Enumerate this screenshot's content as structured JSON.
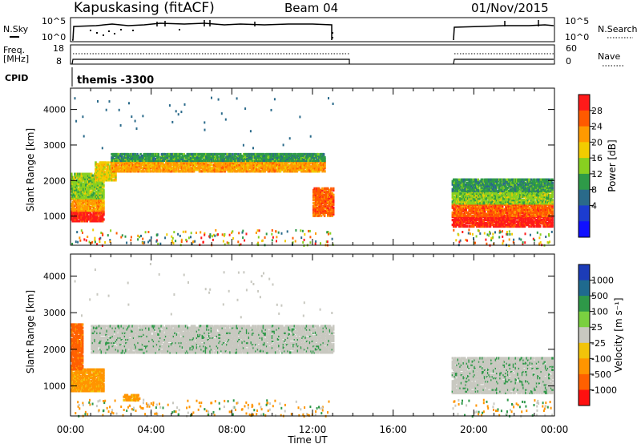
{
  "header": {
    "station": "Kapuskasing (fitACF)",
    "beam": "Beam 04",
    "date": "01/Nov/2015"
  },
  "scan_panel": {
    "left_label": "N.Sky",
    "left_ticks": [
      "10^5",
      "10^0"
    ],
    "right_label": "N.Search",
    "right_ticks": [
      "10^5",
      "10^0"
    ]
  },
  "freq_panel": {
    "left_label_1": "Freq.",
    "left_label_2": "[MHz]",
    "left_ticks": [
      "18",
      "8"
    ],
    "right_label": "Nave",
    "right_ticks": [
      "60",
      "0"
    ]
  },
  "cpid_panel": {
    "label": "CPID",
    "program": "themis -3300"
  },
  "colorbars": {
    "power": {
      "label": "Power [dB]",
      "ticks": [
        "28",
        "24",
        "20",
        "16",
        "12",
        "8",
        "4"
      ],
      "colors": [
        "#ff1a1a",
        "#ff5a00",
        "#ff9a00",
        "#f2cc00",
        "#88d020",
        "#2e9a48",
        "#2a6a8a",
        "#1c3cd0",
        "#1010ff"
      ]
    },
    "velocity": {
      "label": "Velocity [m s⁻¹]",
      "ticks": [
        "1000",
        "500",
        "100",
        "25",
        "-25",
        "-100",
        "-500",
        "-1000"
      ],
      "colors": [
        "#1c3cb8",
        "#1f6a8e",
        "#2e9848",
        "#7ad040",
        "#c8c8c0",
        "#f2c40a",
        "#ff9500",
        "#ff6000",
        "#ff1010"
      ]
    }
  },
  "chart_data": [
    {
      "type": "heatmap",
      "name": "power-panel",
      "ylabel": "Slant Range [km]",
      "x_ticks": [
        "00:00",
        "04:00",
        "08:00",
        "12:00",
        "16:00",
        "20:00",
        "00:00"
      ],
      "y_ticks": [
        "1000",
        "2000",
        "3000",
        "4000"
      ],
      "xlim_hours": [
        0,
        24
      ],
      "ylim_km": [
        180,
        4600
      ],
      "colorbar": "power",
      "bands": [
        {
          "t0": 0.0,
          "t1": 1.6,
          "r0": 850,
          "r1": 1150,
          "value_db": 28
        },
        {
          "t0": 0.0,
          "t1": 1.6,
          "r0": 1150,
          "r1": 1500,
          "value_db": 20
        },
        {
          "t0": 0.0,
          "t1": 1.6,
          "r0": 1500,
          "r1": 2200,
          "value_db": 12
        },
        {
          "t0": 1.2,
          "t1": 2.2,
          "r0": 2000,
          "r1": 2500,
          "value_db": 16
        },
        {
          "t0": 2.0,
          "t1": 12.6,
          "r0": 2250,
          "r1": 2550,
          "value_db": 20
        },
        {
          "t0": 2.0,
          "t1": 12.6,
          "r0": 2550,
          "r1": 2750,
          "value_db": 8
        },
        {
          "t0": 12.0,
          "t1": 13.0,
          "r0": 1000,
          "r1": 1800,
          "value_db": 24
        },
        {
          "t0": 18.9,
          "t1": 23.9,
          "r0": 700,
          "r1": 1000,
          "value_db": 28
        },
        {
          "t0": 18.9,
          "t1": 23.9,
          "r0": 1000,
          "r1": 1350,
          "value_db": 24
        },
        {
          "t0": 18.9,
          "t1": 23.9,
          "r0": 1350,
          "r1": 1700,
          "value_db": 12
        },
        {
          "t0": 18.9,
          "t1": 23.9,
          "r0": 1700,
          "r1": 2050,
          "value_db": 8
        }
      ]
    },
    {
      "type": "heatmap",
      "name": "velocity-panel",
      "ylabel": "Slant Range [km]",
      "xlabel": "Time UT",
      "x_ticks": [
        "00:00",
        "04:00",
        "08:00",
        "12:00",
        "16:00",
        "20:00",
        "00:00"
      ],
      "y_ticks": [
        "1000",
        "2000",
        "3000",
        "4000"
      ],
      "xlim_hours": [
        0,
        24
      ],
      "ylim_km": [
        180,
        4600
      ],
      "colorbar": "velocity",
      "bands": [
        {
          "t0": 0.0,
          "t1": 1.6,
          "r0": 850,
          "r1": 1450,
          "value_ms": -100
        },
        {
          "t0": 0.0,
          "t1": 0.6,
          "r0": 1450,
          "r1": 2700,
          "value_ms": -500
        },
        {
          "t0": 1.0,
          "t1": 13.0,
          "r0": 1900,
          "r1": 2650,
          "value_ms": 0
        },
        {
          "t0": 2.6,
          "t1": 3.4,
          "r0": 600,
          "r1": 750,
          "value_ms": -100
        },
        {
          "t0": 18.9,
          "t1": 23.9,
          "r0": 800,
          "r1": 1750,
          "value_ms": 0
        }
      ]
    }
  ]
}
